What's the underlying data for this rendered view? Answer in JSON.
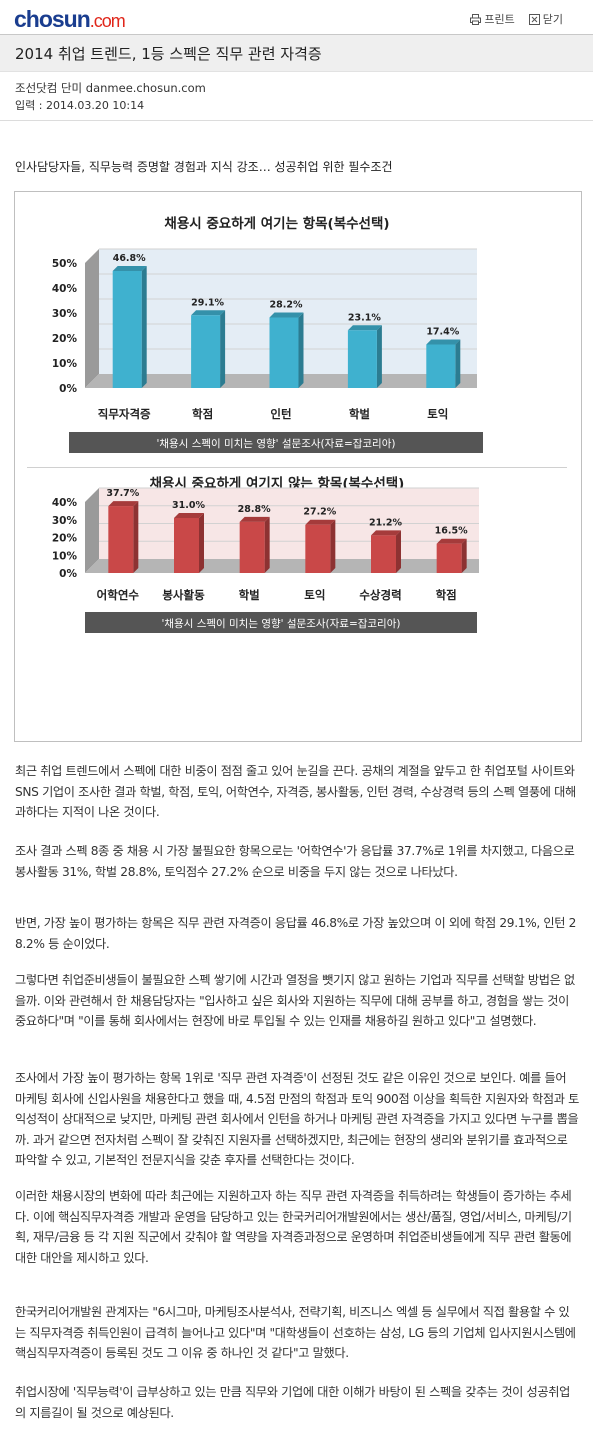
{
  "header": {
    "logo_text": "chosun",
    "logo_suffix": ".com",
    "print_label": "프린트",
    "close_label": "닫기"
  },
  "article": {
    "title": "2014 취업 트렌드, 1등 스펙은 직무 관련 자격증",
    "byline": "조선닷컴 단미 danmee.chosun.com",
    "date": "입력 : 2014.03.20 10:14",
    "subtitle": "인사담당자들, 직무능력 증명할 경험과 지식 강조… 성공취업 위한 필수조건",
    "paragraphs": [
      "최근 취업 트렌드에서 스펙에 대한 비중이 점점 줄고 있어 눈길을 끈다. 공채의 계절을 앞두고 한 취업포털 사이트와 SNS 기업이 조사한 결과 학벌, 학점, 토익, 어학연수, 자격증, 봉사활동, 인턴 경력, 수상경력 등의 스펙 열풍에 대해 과하다는 지적이 나온 것이다.",
      "조사 결과 스펙 8종 중 채용 시 가장 불필요한 항목으로는 '어학연수'가 응답률 37.7%로 1위를 차지했고, 다음으로 봉사활동 31%, 학벌 28.8%, 토익점수 27.2% 순으로 비중을 두지 않는 것으로 나타났다.",
      "반면, 가장 높이 평가하는 항목은 직무 관련 자격증이 응답률 46.8%로 가장 높았으며 이 외에 학점 29.1%, 인턴 28.2% 등 순이었다.",
      "그렇다면 취업준비생들이 불필요한 스펙 쌓기에 시간과 열정을 뺏기지 않고 원하는 기업과 직무를 선택할 방법은 없을까. 이와 관련해서 한 채용담당자는 \"입사하고 싶은 회사와 지원하는 직무에 대해 공부를 하고, 경험을 쌓는 것이 중요하다\"며 \"이를 통해 회사에서는 현장에 바로 투입될 수 있는 인재를 채용하길 원하고 있다\"고 설명했다.",
      "조사에서 가장 높이 평가하는 항목 1위로 '직무 관련 자격증'이 선정된 것도 같은 이유인 것으로 보인다. 예를 들어 마케팅 회사에 신입사원을 채용한다고 했을 때, 4.5점 만점의 학점과 토익 900점 이상을 획득한 지원자와 학점과 토익성적이 상대적으로 낮지만, 마케팅 관련 회사에서 인턴을 하거나 마케팅 관련 자격증을 가지고 있다면 누구를 뽑을까. 과거 같으면 전자처럼 스펙이 잘 갖춰진 지원자를 선택하겠지만, 최근에는 현장의 생리와 분위기를 효과적으로 파악할 수 있고, 기본적인 전문지식을 갖춘 후자를 선택한다는 것이다.",
      "이러한 채용시장의 변화에 따라 최근에는 지원하고자 하는 직무 관련 자격증을 취득하려는 학생들이 증가하는 추세다. 이에 핵심직무자격증 개발과 운영을 담당하고 있는 한국커리어개발원에서는 생산/품질, 영업/서비스, 마케팅/기획, 재무/금융 등 각 지원 직군에서 갖춰야 할 역량을 자격증과정으로 운영하며 취업준비생들에게 직무 관련 활동에 대한 대안을 제시하고 있다.",
      "한국커리어개발원 관계자는 \"6시그마, 마케팅조사분석사, 전략기획, 비즈니스 엑셀 등 실무에서 직접 활용할 수 있는 직무자격증 취득인원이 급격히 늘어나고 있다\"며 \"대학생들이 선호하는 삼성, LG 등의 기업체 입사지원시스템에 핵심직무자격증이 등록된 것도 그 이유 중 하나인 것 같다\"고 말했다.",
      "취업시장에 '직무능력'이 급부상하고 있는 만큼 직무와 기업에 대한 이해가 바탕이 된 스펙을 갖추는 것이 성공취업의 지름길이 될 것으로 예상된다."
    ]
  },
  "chart_data": [
    {
      "type": "bar",
      "title": "채용시 중요하게 여기는 항목(복수선택)",
      "categories": [
        "직무자격증",
        "학점",
        "인턴",
        "학벌",
        "토익"
      ],
      "values": [
        46.8,
        29.1,
        28.2,
        23.1,
        17.4
      ],
      "value_labels": [
        "46.8%",
        "29.1%",
        "28.2%",
        "23.1%",
        "17.4%"
      ],
      "yticks": [
        "0%",
        "10%",
        "20%",
        "30%",
        "40%",
        "50%"
      ],
      "ylim": [
        0,
        50
      ],
      "source": "'채용시 스펙이 미치는 영향' 설문조사(자료=잡코리아)",
      "bar_color": "#3fb1cf",
      "wall_color": "#e4edf5"
    },
    {
      "type": "bar",
      "title": "채용시 중요하게 여기지 않는 항목(복수선택)",
      "categories": [
        "어학연수",
        "봉사활동",
        "학벌",
        "토익",
        "수상경력",
        "학점"
      ],
      "values": [
        37.7,
        31.0,
        28.8,
        27.2,
        21.2,
        16.5
      ],
      "value_labels": [
        "37.7%",
        "31.0%",
        "28.8%",
        "27.2%",
        "21.2%",
        "16.5%"
      ],
      "yticks": [
        "0%",
        "10%",
        "20%",
        "30%",
        "40%"
      ],
      "ylim": [
        0,
        40
      ],
      "source": "'채용시 스펙이 미치는 영향' 설문조사(자료=잡코리아)",
      "bar_color": "#c94848",
      "wall_color": "#f7e6e6"
    }
  ]
}
